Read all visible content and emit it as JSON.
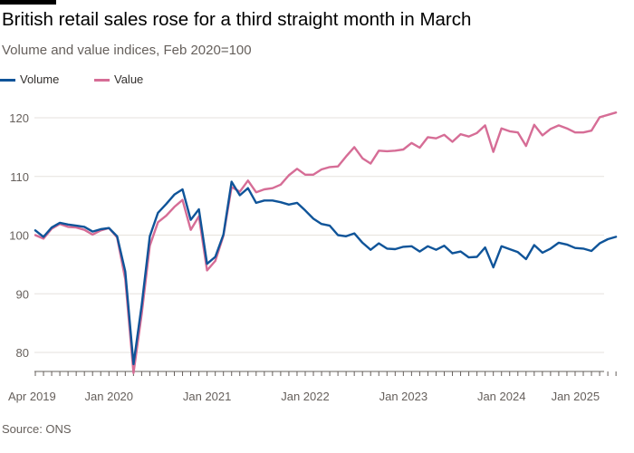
{
  "title": "British retail sales rose for a third straight month in March",
  "subtitle": "Volume and value indices, Feb 2020=100",
  "source": "Source: ONS",
  "colors": {
    "volume": "#0f5499",
    "value": "#d66d96",
    "grid": "#e6e2dd",
    "axis": "#66605c"
  },
  "legend": [
    {
      "name": "Volume",
      "color": "#0f5499"
    },
    {
      "name": "Value",
      "color": "#d66d96"
    }
  ],
  "chart_data": {
    "type": "line",
    "title": "British retail sales rose for a third straight month in March",
    "subtitle": "Volume and value indices, Feb 2020=100",
    "xlabel": "",
    "ylabel": "",
    "x_start": "Apr 2019",
    "x_frequency": "monthly",
    "ylim": [
      75,
      124
    ],
    "y_ticks": [
      80,
      90,
      100,
      110,
      120
    ],
    "x_ticks": [
      {
        "label": "Apr 2019",
        "index": 0
      },
      {
        "label": "Jan 2020",
        "index": 9
      },
      {
        "label": "Jan 2021",
        "index": 21
      },
      {
        "label": "Jan 2022",
        "index": 33
      },
      {
        "label": "Jan 2023",
        "index": 45
      },
      {
        "label": "Jan 2024",
        "index": 57
      },
      {
        "label": "Jan 2025",
        "index": 69
      }
    ],
    "grid": "horizontal",
    "legend_position": "top-left",
    "series": [
      {
        "name": "Volume",
        "values": [
          100.8,
          99.7,
          101.3,
          102.1,
          101.8,
          101.6,
          101.4,
          100.6,
          101.0,
          101.2,
          99.8,
          93.8,
          78.0,
          88.0,
          99.8,
          103.8,
          105.3,
          106.9,
          107.8,
          102.6,
          104.4,
          95.1,
          96.3,
          100.1,
          109.1,
          106.8,
          108.0,
          105.5,
          105.9,
          105.9,
          105.6,
          105.2,
          105.5,
          104.2,
          102.8,
          101.9,
          101.6,
          100.0,
          99.8,
          100.3,
          98.7,
          97.5,
          98.6,
          97.7,
          97.6,
          98.0,
          98.1,
          97.2,
          98.1,
          97.5,
          98.2,
          96.9,
          97.2,
          96.2,
          96.3,
          97.9,
          94.5,
          98.1,
          97.6,
          97.1,
          95.9,
          98.3,
          97.0,
          97.7,
          98.7,
          98.4,
          97.8,
          97.7,
          97.3,
          98.6,
          99.3,
          99.7
        ]
      },
      {
        "name": "Value",
        "values": [
          100.0,
          99.4,
          101.1,
          101.9,
          101.4,
          101.3,
          100.9,
          100.1,
          100.8,
          101.2,
          99.6,
          92.5,
          76.5,
          86.5,
          98.2,
          102.2,
          103.3,
          104.8,
          106.0,
          100.9,
          103.2,
          94.0,
          95.6,
          99.9,
          108.2,
          107.4,
          109.3,
          107.3,
          107.8,
          108.0,
          108.6,
          110.2,
          111.3,
          110.3,
          110.3,
          111.2,
          111.6,
          111.7,
          113.4,
          115.0,
          113.1,
          112.2,
          114.4,
          114.3,
          114.4,
          114.6,
          115.7,
          114.9,
          116.7,
          116.5,
          117.1,
          115.9,
          117.2,
          116.8,
          117.4,
          118.7,
          114.2,
          118.2,
          117.7,
          117.5,
          115.2,
          118.8,
          117.0,
          118.1,
          118.7,
          118.2,
          117.5,
          117.5,
          117.8,
          120.1,
          120.5,
          120.9
        ]
      }
    ]
  }
}
